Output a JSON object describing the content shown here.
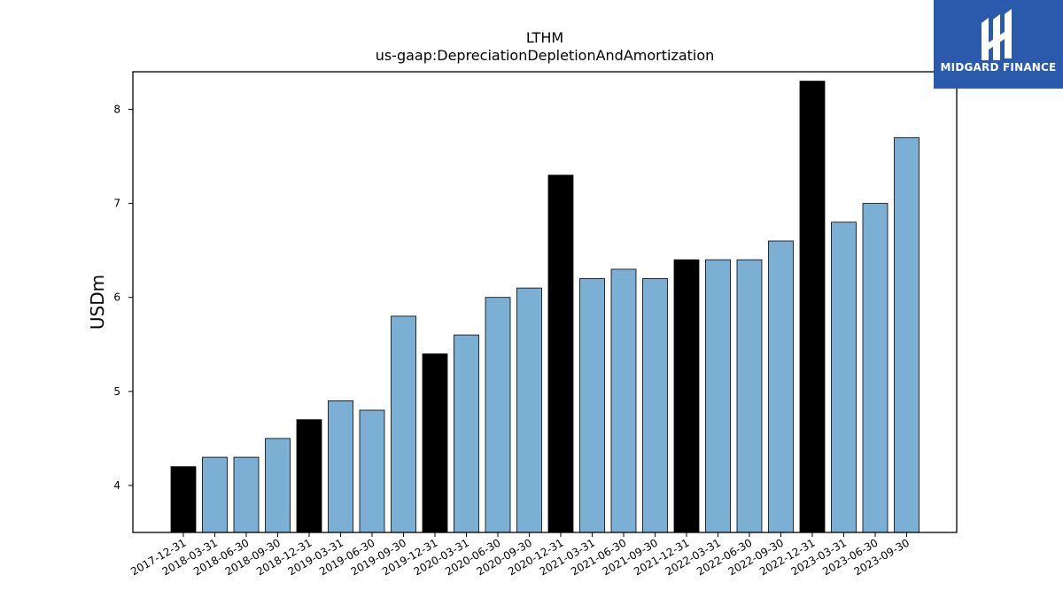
{
  "chart_data": {
    "type": "bar",
    "title": "LTHM",
    "subtitle": "us-gaap:DepreciationDepletionAndAmortization",
    "xlabel": "",
    "ylabel": "USDm",
    "ylim": [
      3.5,
      8.4
    ],
    "yticks": [
      4,
      5,
      6,
      7,
      8
    ],
    "grid": false,
    "categories": [
      "2017-12-31",
      "2018-03-31",
      "2018-06-30",
      "2018-09-30",
      "2018-12-31",
      "2019-03-31",
      "2019-06-30",
      "2019-09-30",
      "2019-12-31",
      "2020-03-31",
      "2020-06-30",
      "2020-09-30",
      "2020-12-31",
      "2021-03-31",
      "2021-06-30",
      "2021-09-30",
      "2021-12-31",
      "2022-03-31",
      "2022-06-30",
      "2022-09-30",
      "2022-12-31",
      "2023-03-31",
      "2023-06-30",
      "2023-09-30"
    ],
    "values": [
      4.2,
      4.3,
      4.3,
      4.5,
      4.7,
      4.9,
      4.8,
      5.8,
      5.4,
      5.6,
      6.0,
      6.1,
      7.3,
      6.2,
      6.3,
      6.2,
      6.4,
      6.4,
      6.4,
      6.6,
      8.3,
      6.8,
      7.0,
      7.7
    ],
    "colors": {
      "quarter": "#7bafd4",
      "year_end": "#000000",
      "edge": "#000000"
    }
  },
  "logo": {
    "text": "MIDGARD FINANCE",
    "background": "#2b5aad"
  }
}
